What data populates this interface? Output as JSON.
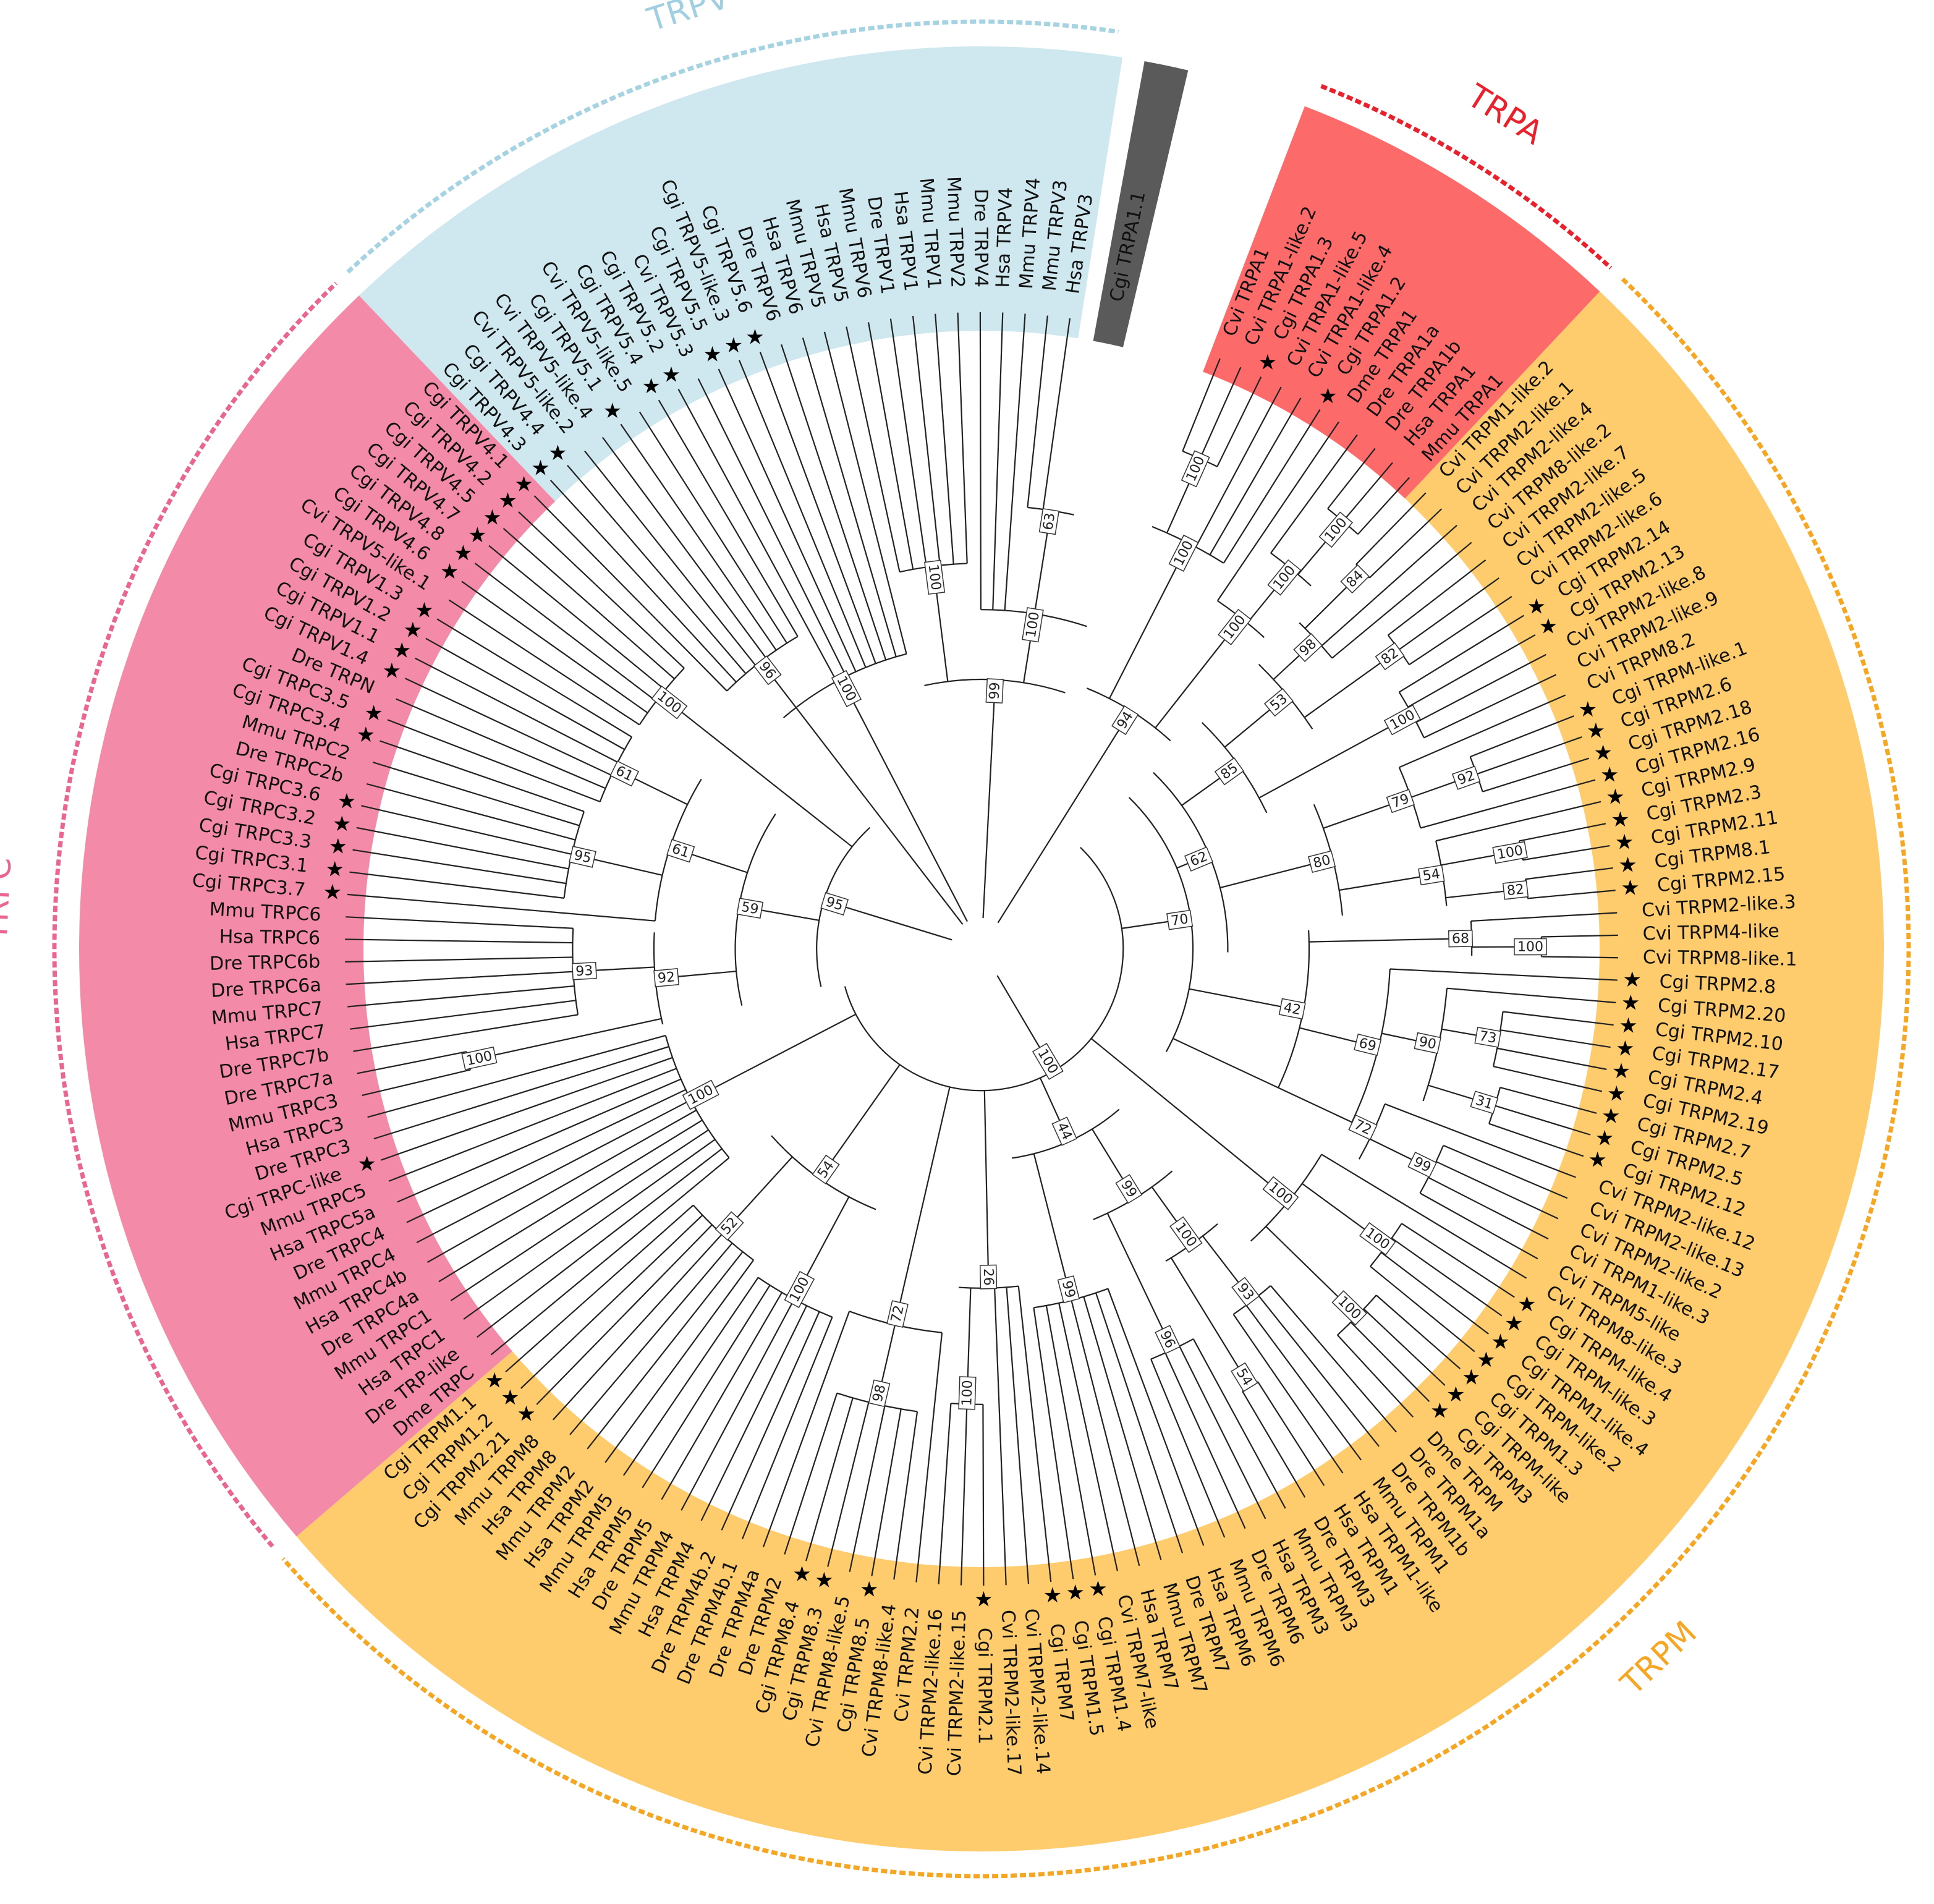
{
  "clades": [
    {
      "name": "TRPV",
      "color": "#cfe7ee",
      "ring": "#a6d3e2",
      "labelColor": "#9fcfe0",
      "start": 8,
      "end": 38
    },
    {
      "name": "TRPC",
      "color": "#f38ba8",
      "ring": "#e8668f",
      "labelColor": "#e8668f",
      "start": 38,
      "end": 73
    },
    {
      "name": "TRPM",
      "color": "#fecb6d",
      "ring": "#f5a623",
      "labelColor": "#f5a623",
      "start": 73,
      "end": 152
    },
    {
      "name": "TRPA",
      "color": "#fd6a6a",
      "ring": "#e8212c",
      "labelColor": "#e8212c",
      "start": 0,
      "end": 8
    }
  ],
  "outgroup": {
    "label": "Cgi TRPA1.1",
    "color": "#5a5a5a"
  },
  "leaves": [
    "Cvi TRPA1",
    "Cvi TRPA1-like.2",
    "Cgi TRPA1.3",
    "Cvi TRPA1-like.5",
    "Cvi TRPA1-like.4",
    "Cgi TRPA1.2",
    "Dme TRPA1",
    "Dre TRPA1a",
    "Dre TRPA1b",
    "Hsa TRPA1",
    "Mmu TRPA1",
    "Cvi TRPM1-like.2",
    "Cvi TRPM2-like.1",
    "Cvi TRPM2-like.4",
    "Cvi TRPM8-like.2",
    "Cvi TRPM2-like.7",
    "Cvi TRPM2-like.5",
    "Cvi TRPM2-like.6",
    "Cgi TRPM2.14",
    "Cgi TRPM2.13",
    "Cvi TRPM2-like.8",
    "Cvi TRPM2-like.9",
    "Cvi TRPM8.2",
    "Cgi TRPM-like.1",
    "Cgi TRPM2.6",
    "Cgi TRPM2.18",
    "Cgi TRPM2.16",
    "Cgi TRPM2.9",
    "Cgi TRPM2.3",
    "Cgi TRPM2.11",
    "Cgi TRPM8.1",
    "Cgi TRPM2.15",
    "Cvi TRPM2-like.3",
    "Cvi TRPM4-like",
    "Cvi TRPM8-like.1",
    "Cgi TRPM2.8",
    "Cgi TRPM2.20",
    "Cgi TRPM2.10",
    "Cgi TRPM2.17",
    "Cgi TRPM2.4",
    "Cgi TRPM2.19",
    "Cgi TRPM2.7",
    "Cgi TRPM2.5",
    "Cgi TRPM2.12",
    "Cvi TRPM2-like.12",
    "Cvi TRPM2-like.13",
    "Cvi TRPM2-like.2",
    "Cvi TRPM1-like.3",
    "Cvi TRPM5-like",
    "Cvi TRPM8-like.3",
    "Cgi TRPM-like.4",
    "Cgi TRPM-like.3",
    "Cgi TRPM1-like.4",
    "Cgi TRPM-like.2",
    "Cgi TRPM1.3",
    "Cgi TRPM-like",
    "Cgi TRPM3",
    "Dme TRPM",
    "Dre TRPM1a",
    "Dre TRPM1b",
    "Mmu TRPM1",
    "Hsa TRPM1-like",
    "Hsa TRPM1",
    "Dre TRPM3",
    "Mmu TRPM3",
    "Hsa TRPM3",
    "Dre TRPM6",
    "Mmu TRPM6",
    "Hsa TRPM6",
    "Dre TRPM7",
    "Mmu TRPM7",
    "Hsa TRPM7",
    "Cvi TRPM7-like",
    "Cgi TRPM1.4",
    "Cgi TRPM1.5",
    "Cgi TRPM7",
    "Cvi TRPM2-like.14",
    "Cvi TRPM2-like.17",
    "Cgi TRPM2.1",
    "Cvi TRPM2-like.15",
    "Cvi TRPM2-like.16",
    "Cvi TRPM2.2",
    "Cvi TRPM8-like.4",
    "Cgi TRPM8.5",
    "Cvi TRPM8-like.5",
    "Cgi TRPM8.3",
    "Cgi TRPM8.4",
    "Dre TRPM2",
    "Dre TRPM4a",
    "Dre TRPM4b.1",
    "Dre TRPM4b.2",
    "Hsa TRPM4",
    "Mmu TRPM4",
    "Dre TRPM5",
    "Hsa TRPM5",
    "Mmu TRPM5",
    "Hsa TRPM2",
    "Mmu TRPM2",
    "Hsa TRPM8",
    "Mmu TRPM8",
    "Cgi TRPM2.21",
    "Cgi TRPM1.2",
    "Cgi TRPM1.1",
    "Dme TRPC",
    "Dre TRP-like",
    "Hsa TRPC1",
    "Mmu TRPC1",
    "Dre TRPC4a",
    "Hsa TRPC4b",
    "Mmu TRPC4",
    "Dre TRPC4",
    "Hsa TRPC5a",
    "Mmu TRPC5",
    "Cgi TRPC-like",
    "Dre TRPC3",
    "Hsa TRPC3",
    "Mmu TRPC3",
    "Dre TRPC7a",
    "Dre TRPC7b",
    "Hsa TRPC7",
    "Mmu TRPC7",
    "Dre TRPC6a",
    "Dre TRPC6b",
    "Hsa TRPC6",
    "Mmu TRPC6",
    "Cgi TRPC3.7",
    "Cgi TRPC3.1",
    "Cgi TRPC3.3",
    "Cgi TRPC3.2",
    "Cgi TRPC3.6",
    "Dre TRPC2b",
    "Mmu TRPC2",
    "Cgi TRPC3.4",
    "Cgi TRPC3.5",
    "Dre TRPN",
    "Cgi TRPV1.4",
    "Cgi TRPV1.1",
    "Cgi TRPV1.2",
    "Cgi TRPV1.3",
    "Cvi TRPV5-like.1",
    "Cgi TRPV4.6",
    "Cgi TRPV4.8",
    "Cgi TRPV4.7",
    "Cgi TRPV4.5",
    "Cgi TRPV4.2",
    "Cgi TRPV4.1",
    "Cgi TRPV4.3",
    "Cgi TRPV4.4",
    "Cvi TRPV5-like.2",
    "Cvi TRPV5-like.4",
    "Cgi TRPV5.1",
    "Cvi TRPV5-like.5",
    "Cgi TRPV5.4",
    "Cgi TRPV5.2",
    "Cvi TRPV5.3",
    "Cgi TRPV5.5",
    "Cgi TRPV5-like.3",
    "Cgi TRPV5.6",
    "Dre TRPV6",
    "Hsa TRPV6",
    "Mmu TRPV5",
    "Hsa TRPV5",
    "Mmu TRPV6",
    "Dre TRPV1",
    "Hsa TRPV1",
    "Mmu TRPV1",
    "Mmu TRPV2",
    "Dre TRPV4",
    "Hsa TRPV4",
    "Mmu TRPV4",
    "Mmu TRPV3",
    "Hsa TRPV3"
  ],
  "starred": [
    "Cgi TRPA1.3",
    "Cgi TRPA1.2",
    "Cgi TRPM2.14",
    "Cgi TRPM2.13",
    "Cgi TRPM-like.1",
    "Cgi TRPM2.6",
    "Cgi TRPM2.18",
    "Cgi TRPM2.16",
    "Cgi TRPM2.9",
    "Cgi TRPM2.3",
    "Cgi TRPM2.11",
    "Cgi TRPM8.1",
    "Cgi TRPM2.15",
    "Cgi TRPM2.8",
    "Cgi TRPM2.20",
    "Cgi TRPM2.10",
    "Cgi TRPM2.17",
    "Cgi TRPM2.4",
    "Cgi TRPM2.19",
    "Cgi TRPM2.7",
    "Cgi TRPM2.5",
    "Cgi TRPM2.12",
    "Cgi TRPM-like.4",
    "Cgi TRPM-like.3",
    "Cgi TRPM1-like.4",
    "Cgi TRPM-like.2",
    "Cgi TRPM1.3",
    "Cgi TRPM-like",
    "Cgi TRPM3",
    "Cgi TRPM1.4",
    "Cgi TRPM1.5",
    "Cgi TRPM7",
    "Cgi TRPM2.1",
    "Cgi TRPM8.5",
    "Cgi TRPM8.3",
    "Cgi TRPM8.4",
    "Cgi TRPM2.21",
    "Cgi TRPM1.2",
    "Cgi TRPM1.1",
    "Cgi TRPC-like",
    "Cgi TRPC3.7",
    "Cgi TRPC3.1",
    "Cgi TRPC3.3",
    "Cgi TRPC3.2",
    "Cgi TRPC3.6",
    "Cgi TRPC3.4",
    "Cgi TRPC3.5",
    "Cgi TRPV1.4",
    "Cgi TRPV1.1",
    "Cgi TRPV1.2",
    "Cgi TRPV1.3",
    "Cgi TRPV4.6",
    "Cgi TRPV4.8",
    "Cgi TRPV4.7",
    "Cgi TRPV4.5",
    "Cgi TRPV4.2",
    "Cgi TRPV4.1",
    "Cgi TRPV4.3",
    "Cgi TRPV4.4",
    "Cgi TRPV5.1",
    "Cgi TRPV5.4",
    "Cgi TRPV5.2",
    "Cgi TRPV5.5",
    "Cgi TRPV5-like.3",
    "Cgi TRPV5.6",
    "Cgi TRPA1.1"
  ],
  "nodes": [
    {
      "a": 0,
      "b": 10,
      "r": 0.42,
      "support": "94"
    },
    {
      "a": 0,
      "b": 5,
      "r": 0.72,
      "support": "100"
    },
    {
      "a": 0,
      "b": 2,
      "r": 0.86,
      "support": "100"
    },
    {
      "a": 6,
      "b": 10,
      "r": 0.66,
      "support": "100"
    },
    {
      "a": 7,
      "b": 10,
      "r": 0.78,
      "support": "100"
    },
    {
      "a": 8,
      "b": 10,
      "r": 0.9,
      "support": "100"
    },
    {
      "a": 11,
      "b": 115,
      "r": 0.18,
      "support": "100"
    },
    {
      "a": 11,
      "b": 48,
      "r": 0.3,
      "support": "70"
    },
    {
      "a": 11,
      "b": 34,
      "r": 0.36,
      "support": "62"
    },
    {
      "a": 11,
      "b": 21,
      "r": 0.48,
      "support": "85"
    },
    {
      "a": 11,
      "b": 17,
      "r": 0.62,
      "support": "53"
    },
    {
      "a": 11,
      "b": 14,
      "r": 0.72,
      "support": "98"
    },
    {
      "a": 11,
      "b": 12,
      "r": 0.86,
      "support": "84"
    },
    {
      "a": 15,
      "b": 17,
      "r": 0.82,
      "support": "82"
    },
    {
      "a": 18,
      "b": 21,
      "r": 0.78,
      "support": "100"
    },
    {
      "a": 22,
      "b": 31,
      "r": 0.56,
      "support": "80"
    },
    {
      "a": 22,
      "b": 26,
      "r": 0.72,
      "support": "79"
    },
    {
      "a": 23,
      "b": 25,
      "r": 0.84,
      "support": "92"
    },
    {
      "a": 27,
      "b": 31,
      "r": 0.74,
      "support": "54"
    },
    {
      "a": 28,
      "b": 29,
      "r": 0.88,
      "support": "100"
    },
    {
      "a": 30,
      "b": 31,
      "r": 0.88,
      "support": "82"
    },
    {
      "a": 32,
      "b": 46,
      "r": 0.5,
      "support": "42"
    },
    {
      "a": 32,
      "b": 34,
      "r": 0.78,
      "support": "68"
    },
    {
      "a": 33,
      "b": 34,
      "r": 0.9,
      "support": "100"
    },
    {
      "a": 35,
      "b": 46,
      "r": 0.64,
      "support": "69"
    },
    {
      "a": 36,
      "b": 43,
      "r": 0.74,
      "support": "90"
    },
    {
      "a": 37,
      "b": 40,
      "r": 0.84,
      "support": "73"
    },
    {
      "a": 41,
      "b": 43,
      "r": 0.86,
      "support": "31"
    },
    {
      "a": 44,
      "b": 48,
      "r": 0.68,
      "support": "72"
    },
    {
      "a": 45,
      "b": 48,
      "r": 0.8,
      "support": "99"
    },
    {
      "a": 49,
      "b": 57,
      "r": 0.62,
      "support": "100"
    },
    {
      "a": 50,
      "b": 53,
      "r": 0.8,
      "support": "100"
    },
    {
      "a": 54,
      "b": 57,
      "r": 0.84,
      "support": "100"
    },
    {
      "a": 58,
      "b": 74,
      "r": 0.3,
      "support": "44"
    },
    {
      "a": 58,
      "b": 67,
      "r": 0.44,
      "support": "99"
    },
    {
      "a": 58,
      "b": 63,
      "r": 0.56,
      "support": "100"
    },
    {
      "a": 58,
      "b": 61,
      "r": 0.7,
      "support": "93"
    },
    {
      "a": 62,
      "b": 63,
      "r": 0.82,
      "support": "54"
    },
    {
      "a": 64,
      "b": 67,
      "r": 0.7,
      "support": "96"
    },
    {
      "a": 68,
      "b": 74,
      "r": 0.56,
      "support": "99"
    },
    {
      "a": 75,
      "b": 80,
      "r": 0.52,
      "support": "26"
    },
    {
      "a": 78,
      "b": 80,
      "r": 0.72,
      "support": "100"
    },
    {
      "a": 81,
      "b": 88,
      "r": 0.6,
      "support": "72"
    },
    {
      "a": 82,
      "b": 87,
      "r": 0.74,
      "support": "98"
    },
    {
      "a": 89,
      "b": 102,
      "r": 0.42,
      "support": "54"
    },
    {
      "a": 89,
      "b": 95,
      "r": 0.62,
      "support": "100"
    },
    {
      "a": 96,
      "b": 102,
      "r": 0.6,
      "support": "52"
    },
    {
      "a": 103,
      "b": 115,
      "r": 0.5,
      "support": "100"
    },
    {
      "a": 116,
      "b": 146,
      "r": 0.22,
      "support": "95"
    },
    {
      "a": 116,
      "b": 139,
      "r": 0.36,
      "support": "59"
    },
    {
      "a": 116,
      "b": 124,
      "r": 0.5,
      "support": "92"
    },
    {
      "a": 116,
      "b": 117,
      "r": 0.84,
      "support": "100"
    },
    {
      "a": 118,
      "b": 124,
      "r": 0.64,
      "support": "93"
    },
    {
      "a": 125,
      "b": 138,
      "r": 0.5,
      "support": "61"
    },
    {
      "a": 126,
      "b": 132,
      "r": 0.66,
      "support": "95"
    },
    {
      "a": 133,
      "b": 138,
      "r": 0.64,
      "support": "61"
    },
    {
      "a": 139,
      "b": 144,
      "r": 0.64,
      "support": "100"
    },
    {
      "a": 145,
      "b": 152,
      "r": 0.56,
      "support": "96"
    },
    {
      "a": 147,
      "b": 160,
      "r": 0.46,
      "support": "100"
    },
    {
      "a": 161,
      "b": 176,
      "r": 0.4,
      "support": "99"
    },
    {
      "a": 161,
      "b": 166,
      "r": 0.6,
      "support": "100"
    },
    {
      "a": 167,
      "b": 176,
      "r": 0.52,
      "support": "100"
    },
    {
      "a": 170,
      "b": 173,
      "r": 0.7,
      "support": "63"
    }
  ]
}
